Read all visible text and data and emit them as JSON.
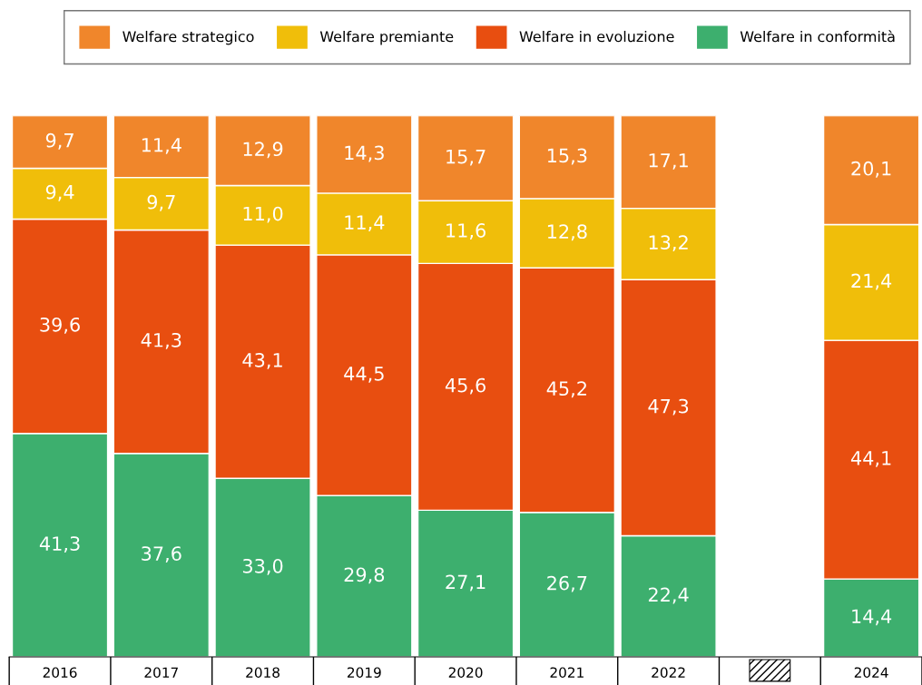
{
  "chart_data": {
    "type": "bar",
    "stacked": true,
    "legend": "top right",
    "grid": false,
    "categories": [
      "2016",
      "2017",
      "2018",
      "2019",
      "2020",
      "2021",
      "2022",
      null,
      "2024"
    ],
    "series": [
      {
        "name": "Welfare in conformità",
        "color": "#3daf6e",
        "values": [
          41.3,
          37.6,
          33.0,
          29.8,
          27.1,
          26.7,
          22.4,
          null,
          14.4
        ],
        "value_labels": [
          "41,3",
          "37,6",
          "33,0",
          "29,8",
          "27,1",
          "26,7",
          "22,4",
          null,
          "14,4"
        ]
      },
      {
        "name": "Welfare in evoluzione",
        "color": "#e84e10",
        "values": [
          39.6,
          41.3,
          43.1,
          44.5,
          45.6,
          45.2,
          47.3,
          null,
          44.1
        ],
        "value_labels": [
          "39,6",
          "41,3",
          "43,1",
          "44,5",
          "45,6",
          "45,2",
          "47,3",
          null,
          "44,1"
        ]
      },
      {
        "name": "Welfare premiante",
        "color": "#f0be0a",
        "values": [
          9.4,
          9.7,
          11.0,
          11.4,
          11.6,
          12.8,
          13.2,
          null,
          21.4
        ],
        "value_labels": [
          "9,4",
          "9,7",
          "11,0",
          "11,4",
          "11,6",
          "12,8",
          "13,2",
          null,
          "21,4"
        ]
      },
      {
        "name": "Welfare strategico",
        "color": "#f0862b",
        "values": [
          9.7,
          11.4,
          12.9,
          14.3,
          15.7,
          15.3,
          17.1,
          null,
          20.1
        ],
        "value_labels": [
          "9,7",
          "11,4",
          "12,9",
          "14,3",
          "15,7",
          "15,3",
          "17,1",
          null,
          "20,1"
        ]
      }
    ]
  }
}
